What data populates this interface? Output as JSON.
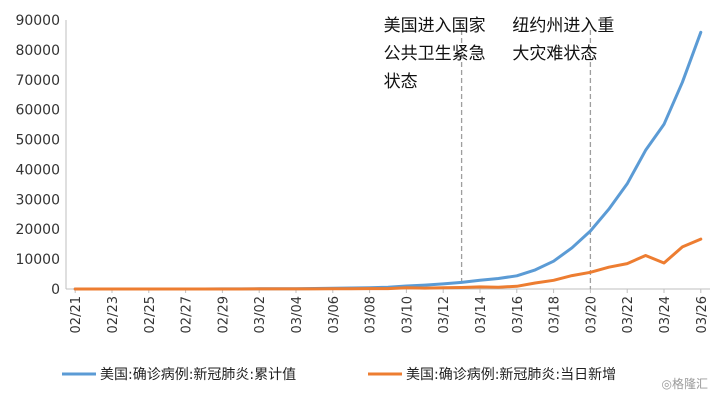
{
  "chart_data": {
    "type": "line",
    "categories": [
      "02/21",
      "02/22",
      "02/23",
      "02/24",
      "02/25",
      "02/26",
      "02/27",
      "02/28",
      "02/29",
      "03/01",
      "03/02",
      "03/03",
      "03/04",
      "03/05",
      "03/06",
      "03/07",
      "03/08",
      "03/09",
      "03/10",
      "03/11",
      "03/12",
      "03/13",
      "03/14",
      "03/15",
      "03/16",
      "03/17",
      "03/18",
      "03/19",
      "03/20",
      "03/21",
      "03/22",
      "03/23",
      "03/24",
      "03/25",
      "03/26"
    ],
    "x_tick_labels": [
      "02/21",
      "02/23",
      "02/25",
      "02/27",
      "02/29",
      "03/02",
      "03/04",
      "03/06",
      "03/08",
      "03/10",
      "03/12",
      "03/14",
      "03/16",
      "03/18",
      "03/20",
      "03/22",
      "03/24",
      "03/26"
    ],
    "y_ticks": [
      0,
      10000,
      20000,
      30000,
      40000,
      50000,
      60000,
      70000,
      80000,
      90000
    ],
    "ylim": [
      0,
      90000
    ],
    "series": [
      {
        "name": "美国:确诊病例:新冠肺炎:累计值",
        "color": "#5b9bd5",
        "values": [
          15,
          15,
          15,
          15,
          15,
          15,
          15,
          16,
          22,
          30,
          55,
          75,
          110,
          160,
          230,
          330,
          450,
          600,
          1000,
          1300,
          1700,
          2200,
          2900,
          3500,
          4400,
          6400,
          9300,
          13800,
          19400,
          26700,
          35200,
          46400,
          55100,
          69200,
          85900
        ]
      },
      {
        "name": "美国:确诊病例:新冠肺炎:当日新增",
        "color": "#ed7d31",
        "values": [
          0,
          0,
          0,
          0,
          0,
          0,
          0,
          1,
          6,
          8,
          25,
          20,
          35,
          50,
          70,
          100,
          120,
          150,
          400,
          300,
          400,
          500,
          700,
          600,
          900,
          2000,
          2900,
          4500,
          5600,
          7300,
          8500,
          11200,
          8700,
          14100,
          16700
        ]
      }
    ],
    "annotations": [
      {
        "category": "03/13",
        "text_lines": [
          "美国进入国家",
          "公共卫生紧急",
          "状态"
        ]
      },
      {
        "category": "03/20",
        "text_lines": [
          "纽约州进入重",
          "大灾难状态"
        ]
      }
    ],
    "legend_position": "bottom",
    "grid": false
  },
  "watermark": "格隆汇"
}
